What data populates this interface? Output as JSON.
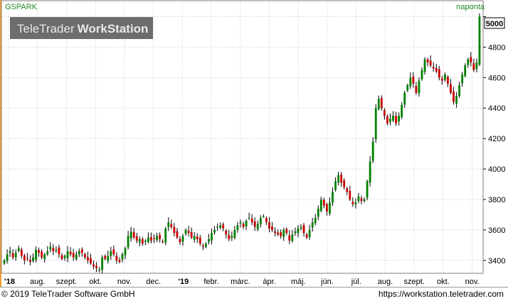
{
  "chart_data": {
    "type": "candlestick",
    "symbol": "GSPARK",
    "interval_label": "naponta",
    "watermark": {
      "brand_light": "TeleTrader",
      "brand_bold": "WorkStation"
    },
    "last_value_label": "5000",
    "ylim": [
      3320,
      5100
    ],
    "y_ticks": [
      3400,
      3600,
      3800,
      4000,
      4200,
      4400,
      4600,
      4800,
      5000
    ],
    "x_tick_labels": [
      "'18",
      "aug.",
      "szept.",
      "okt.",
      "nov.",
      "dec.",
      "'19",
      "febr.",
      "márc.",
      "ápr.",
      "máj.",
      "jún.",
      "júl.",
      "aug.",
      "szept.",
      "okt.",
      "nov."
    ],
    "up_color": "#008000",
    "down_color": "#cc0000",
    "grid": true,
    "close_series": [
      3400,
      3440,
      3460,
      3420,
      3450,
      3480,
      3430,
      3400,
      3410,
      3390,
      3420,
      3470,
      3450,
      3420,
      3440,
      3460,
      3490,
      3460,
      3470,
      3440,
      3410,
      3430,
      3460,
      3440,
      3420,
      3440,
      3460,
      3450,
      3420,
      3400,
      3380,
      3360,
      3350,
      3340,
      3420,
      3410,
      3430,
      3460,
      3440,
      3400,
      3390,
      3440,
      3480,
      3560,
      3590,
      3550,
      3530,
      3540,
      3510,
      3530,
      3550,
      3530,
      3540,
      3560,
      3540,
      3520,
      3610,
      3650,
      3620,
      3580,
      3550,
      3520,
      3560,
      3600,
      3580,
      3550,
      3560,
      3540,
      3510,
      3490,
      3510,
      3540,
      3580,
      3600,
      3620,
      3630,
      3610,
      3570,
      3540,
      3560,
      3600,
      3630,
      3650,
      3620,
      3660,
      3680,
      3650,
      3620,
      3640,
      3680,
      3690,
      3650,
      3610,
      3600,
      3580,
      3570,
      3560,
      3600,
      3580,
      3530,
      3570,
      3590,
      3610,
      3620,
      3580,
      3550,
      3600,
      3650,
      3680,
      3740,
      3800,
      3760,
      3720,
      3780,
      3850,
      3920,
      3960,
      3910,
      3880,
      3850,
      3800,
      3770,
      3780,
      3820,
      3790,
      3800,
      3920,
      4050,
      4180,
      4400,
      4460,
      4400,
      4350,
      4300,
      4330,
      4350,
      4300,
      4350,
      4420,
      4500,
      4550,
      4600,
      4560,
      4500,
      4580,
      4650,
      4720,
      4700,
      4680,
      4660,
      4640,
      4600,
      4580,
      4620,
      4560,
      4500,
      4440,
      4480,
      4550,
      4620,
      4680,
      4720,
      4700,
      4650,
      4700,
      5000
    ]
  },
  "footer": {
    "copyright": "© 2019 TeleTrader Software GmbH",
    "url": "https://workstation.teletrader.com"
  }
}
